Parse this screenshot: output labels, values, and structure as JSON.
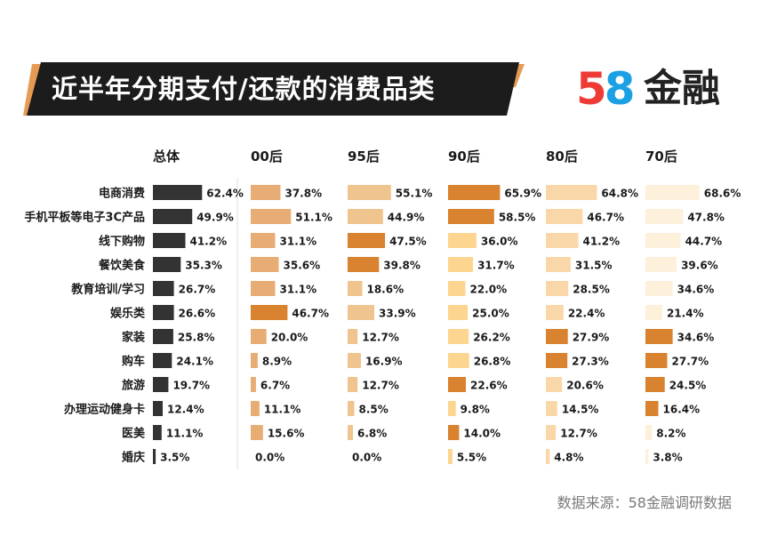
{
  "header": {
    "title": "近半年分期支付/还款的消费品类"
  },
  "logo": {
    "number": "58",
    "text": "金融"
  },
  "source": "数据来源：58金融调研数据",
  "colors": {
    "banner": "#1c1c1c",
    "banner_accent": "#e08a35",
    "total": "#333333",
    "light1": "#fdf1dc",
    "light2": "#f9d7a9",
    "mid1": "#fcd690",
    "mid2": "#e8ad74",
    "dark": "#d9822f"
  },
  "chart_data": {
    "type": "bar",
    "title": "近半年分期支付/还款的消费品类",
    "categories": [
      "电商消费",
      "手机平板等电子3C产品",
      "线下购物",
      "餐饮美食",
      "教育培训/学习",
      "娱乐类",
      "家装",
      "购车",
      "旅游",
      "办理运动健身卡",
      "医美",
      "婚庆"
    ],
    "series": [
      {
        "name": "总体",
        "values": [
          62.4,
          49.9,
          41.2,
          35.3,
          26.7,
          26.6,
          25.8,
          24.1,
          19.7,
          12.4,
          11.1,
          3.5
        ],
        "colors": [
          "#333333",
          "#333333",
          "#333333",
          "#333333",
          "#333333",
          "#333333",
          "#333333",
          "#333333",
          "#333333",
          "#333333",
          "#333333",
          "#333333"
        ]
      },
      {
        "name": "00后",
        "values": [
          37.8,
          51.1,
          31.1,
          35.6,
          31.1,
          46.7,
          20.0,
          8.9,
          6.7,
          11.1,
          15.6,
          0.0
        ],
        "colors": [
          "#e8ad74",
          "#e8ad74",
          "#e8ad74",
          "#e8ad74",
          "#e8ad74",
          "#d9822f",
          "#e8ad74",
          "#e8ad74",
          "#e8ad74",
          "#e8ad74",
          "#e8ad74",
          "#e8ad74"
        ]
      },
      {
        "name": "95后",
        "values": [
          55.1,
          44.9,
          47.5,
          39.8,
          18.6,
          33.9,
          12.7,
          16.9,
          12.7,
          8.5,
          6.8,
          0.0
        ],
        "colors": [
          "#f0c48f",
          "#f0c48f",
          "#d9822f",
          "#d9822f",
          "#f0c48f",
          "#f0c48f",
          "#f0c48f",
          "#f0c48f",
          "#f0c48f",
          "#f0c48f",
          "#f0c48f",
          "#f0c48f"
        ]
      },
      {
        "name": "90后",
        "values": [
          65.9,
          58.5,
          36.0,
          31.7,
          22.0,
          25.0,
          26.2,
          26.8,
          22.6,
          9.8,
          14.0,
          5.5
        ],
        "colors": [
          "#d9822f",
          "#d9822f",
          "#fcd690",
          "#fcd690",
          "#fcd690",
          "#fcd690",
          "#fcd690",
          "#fcd690",
          "#d9822f",
          "#fcd690",
          "#d9822f",
          "#fcd690"
        ]
      },
      {
        "name": "80后",
        "values": [
          64.8,
          46.7,
          41.2,
          31.5,
          28.5,
          22.4,
          27.9,
          27.3,
          20.6,
          14.5,
          12.7,
          4.8
        ],
        "colors": [
          "#f9d7a9",
          "#f9d7a9",
          "#f9d7a9",
          "#f9d7a9",
          "#f9d7a9",
          "#f9d7a9",
          "#d9822f",
          "#d9822f",
          "#f9d7a9",
          "#f9d7a9",
          "#f9d7a9",
          "#f9d7a9"
        ]
      },
      {
        "name": "70后",
        "values": [
          68.6,
          47.8,
          44.7,
          39.6,
          34.6,
          21.4,
          34.6,
          27.7,
          24.5,
          16.4,
          8.2,
          3.8
        ],
        "colors": [
          "#fdf1dc",
          "#fdf1dc",
          "#fdf1dc",
          "#fdf1dc",
          "#fdf1dc",
          "#fdf1dc",
          "#d9822f",
          "#d9822f",
          "#d9822f",
          "#d9822f",
          "#fdf1dc",
          "#fdf1dc"
        ]
      }
    ],
    "value_suffix": "%",
    "xlabel": "",
    "ylabel": "",
    "xlim": [
      0,
      100
    ],
    "grid": false,
    "legend": "none"
  }
}
